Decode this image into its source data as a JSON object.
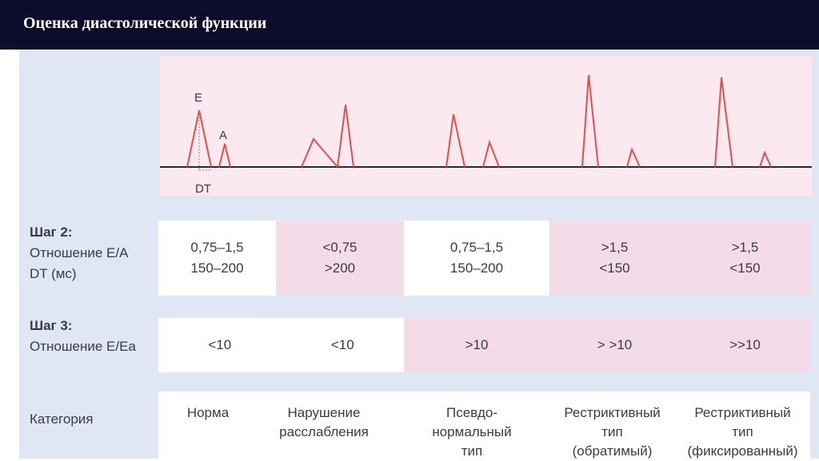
{
  "header": {
    "title": "Оценка диастолической функции"
  },
  "doppler": {
    "labels": {
      "e": "E",
      "a": "A",
      "dt": "DT"
    },
    "line_color": "#e0504f"
  },
  "step2": {
    "title": "Шаг 2:",
    "line1": "Отношение E/A",
    "line2": "DT (мс)",
    "cells": [
      {
        "ea": "0,75–1,5",
        "dt": "150–200"
      },
      {
        "ea": "<0,75",
        "dt": ">200"
      },
      {
        "ea": "0,75–1,5",
        "dt": "150–200"
      },
      {
        "ea": ">1,5",
        "dt": "<150"
      },
      {
        "ea": ">1,5",
        "dt": "<150"
      }
    ]
  },
  "step3": {
    "title": "Шаг 3:",
    "line1": "Отношение E/Ea",
    "cells": [
      "<10",
      "<10",
      ">10",
      "> >10",
      ">>10"
    ]
  },
  "category": {
    "label": "Категория",
    "items": [
      {
        "l1": "Норма",
        "l2": "",
        "l3": ""
      },
      {
        "l1": "Нарушение",
        "l2": "расслабления",
        "l3": ""
      },
      {
        "l1": "Псевдо-",
        "l2": "нормальный",
        "l3": "тип"
      },
      {
        "l1": "Рестриктивный",
        "l2": "тип",
        "l3": "(обратимый)"
      },
      {
        "l1": "Рестриктивный",
        "l2": "тип",
        "l3": "(фиксированный)"
      }
    ]
  },
  "colors": {
    "header_bg": "#0d0d2b",
    "panel_bg": "#dfe6f4",
    "pink": "#f4dbe8",
    "wave_bg": "#fbe9ef"
  }
}
